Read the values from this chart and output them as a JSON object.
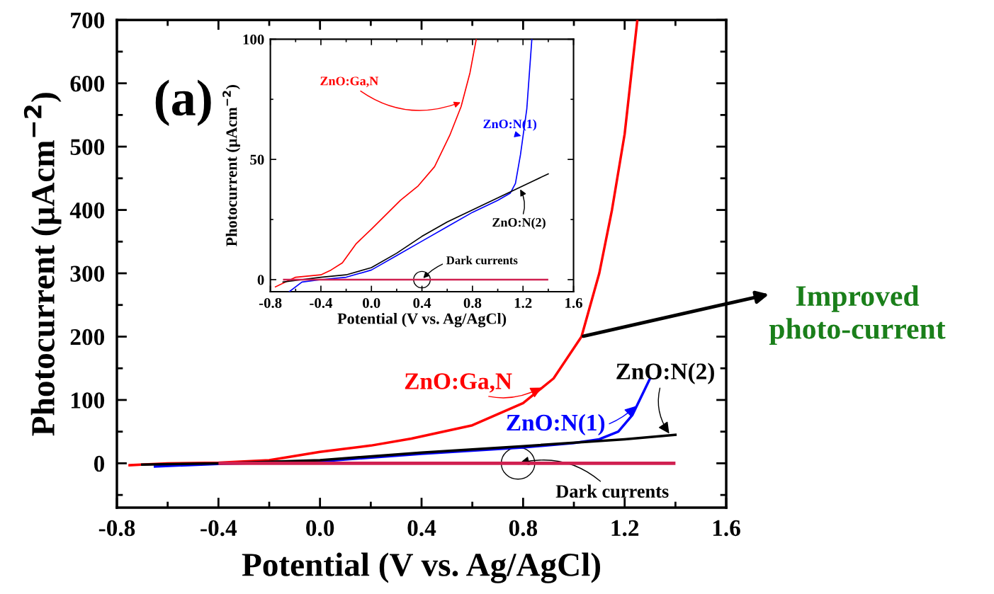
{
  "chart_data": [
    {
      "type": "line",
      "xlabel": "Potential (V vs. Ag/AgCl)",
      "ylabel": "Photocurrent (μAcm$^{−2}$)",
      "xlim": [
        -0.8,
        1.6
      ],
      "xticks": [
        {
          "value": -0.8,
          "label": "-0.8"
        },
        {
          "value": -0.4,
          "label": "-0.4"
        },
        {
          "value": 0,
          "label": "0.0"
        },
        {
          "value": 0.4,
          "label": "0.4"
        },
        {
          "value": 0.8,
          "label": "0.8"
        },
        {
          "value": 1.2,
          "label": "1.2"
        },
        {
          "value": 1.6,
          "label": "1.6"
        }
      ],
      "ylim": [
        -70,
        700
      ],
      "yticks": [
        0,
        100,
        200,
        300,
        400,
        500,
        600,
        700
      ],
      "grid": false,
      "legend": "bottom right",
      "annotations": [
        "(a)",
        {
          "text": "Dark currents",
          "x": 0.78,
          "y": 0
        },
        {
          "text": "Improved photo-current",
          "x": 1.03,
          "y": 200
        }
      ],
      "series": [
        {
          "name": "ZnO:Ga,N",
          "color": "#ff0000",
          "x": [
            -0.75,
            -0.6,
            -0.4,
            -0.2,
            0.0,
            0.2,
            0.36,
            0.6,
            0.8,
            0.92,
            1.03,
            1.1,
            1.15,
            1.2,
            1.25
          ],
          "values": [
            -3,
            0,
            1,
            5,
            18,
            28,
            39,
            60,
            95,
            134,
            200,
            300,
            400,
            520,
            700
          ]
        },
        {
          "name": "ZnO:N(1)",
          "color": "#0000ff",
          "x": [
            -0.65,
            -0.4,
            0.0,
            0.4,
            0.8,
            1.0,
            1.1,
            1.175,
            1.23,
            1.3
          ],
          "values": [
            -5,
            -1,
            3,
            15,
            25,
            32,
            38,
            50,
            76,
            134
          ]
        },
        {
          "name": "ZnO:N(2)",
          "color": "#000000",
          "x": [
            -0.7,
            -0.4,
            0.0,
            0.4,
            0.8,
            1.2,
            1.4
          ],
          "values": [
            -2,
            0,
            5,
            17,
            27,
            38,
            45
          ]
        },
        {
          "color": "#d02050",
          "x": [
            -0.4,
            1.4
          ],
          "values": [
            0,
            0
          ]
        }
      ]
    },
    {
      "type": "line",
      "xlabel": "Potential (V vs. Ag/AgCl)",
      "ylabel": "Photocurrent (μAcm$^{−2}$)",
      "xlim": [
        -0.8,
        1.6
      ],
      "xticks": [
        {
          "value": -0.8,
          "label": "-0.8"
        },
        {
          "value": -0.4,
          "label": "-0.4"
        },
        {
          "value": 0,
          "label": "0.0"
        },
        {
          "value": 0.4,
          "label": "0.4"
        },
        {
          "value": 0.8,
          "label": "0.8"
        },
        {
          "value": 1.2,
          "label": "1.2"
        },
        {
          "value": 1.6,
          "label": "1.6"
        }
      ],
      "ylim": [
        -5,
        100
      ],
      "yticks": [
        0,
        50,
        100
      ],
      "grid": false,
      "legend": "right",
      "annotations": [
        {
          "text": "Dark currents",
          "x": 0.4,
          "y": 0
        }
      ],
      "series": [
        {
          "name": "ZnO:Ga,N",
          "color": "#ff0000",
          "x": [
            -0.76,
            -0.6,
            -0.4,
            -0.32,
            -0.23,
            -0.12,
            0.0,
            0.23,
            0.37,
            0.5,
            0.62,
            0.71,
            0.78,
            0.83
          ],
          "values": [
            -3,
            1,
            2,
            4,
            7,
            15,
            21,
            33,
            39,
            47,
            60,
            72,
            86,
            100
          ]
        },
        {
          "name": "ZnO:N(1)",
          "color": "#0000ff",
          "x": [
            -0.65,
            -0.55,
            -0.4,
            -0.2,
            0.0,
            0.2,
            0.4,
            0.6,
            0.8,
            1.0,
            1.1,
            1.14,
            1.18,
            1.23,
            1.27
          ],
          "values": [
            -5,
            -1,
            0,
            1,
            4,
            10,
            16,
            22,
            28,
            33,
            36,
            40,
            52,
            71,
            100
          ]
        },
        {
          "name": "ZnO:N(2)",
          "color": "#000000",
          "x": [
            -0.7,
            -0.4,
            -0.2,
            0.0,
            0.2,
            0.4,
            0.6,
            0.8,
            1.0,
            1.2,
            1.4
          ],
          "values": [
            -1,
            1,
            2,
            5,
            11,
            18,
            24,
            29,
            34,
            39,
            44
          ]
        },
        {
          "color": "#d02050",
          "x": [
            -0.7,
            1.4
          ],
          "values": [
            0,
            0
          ]
        }
      ]
    }
  ]
}
